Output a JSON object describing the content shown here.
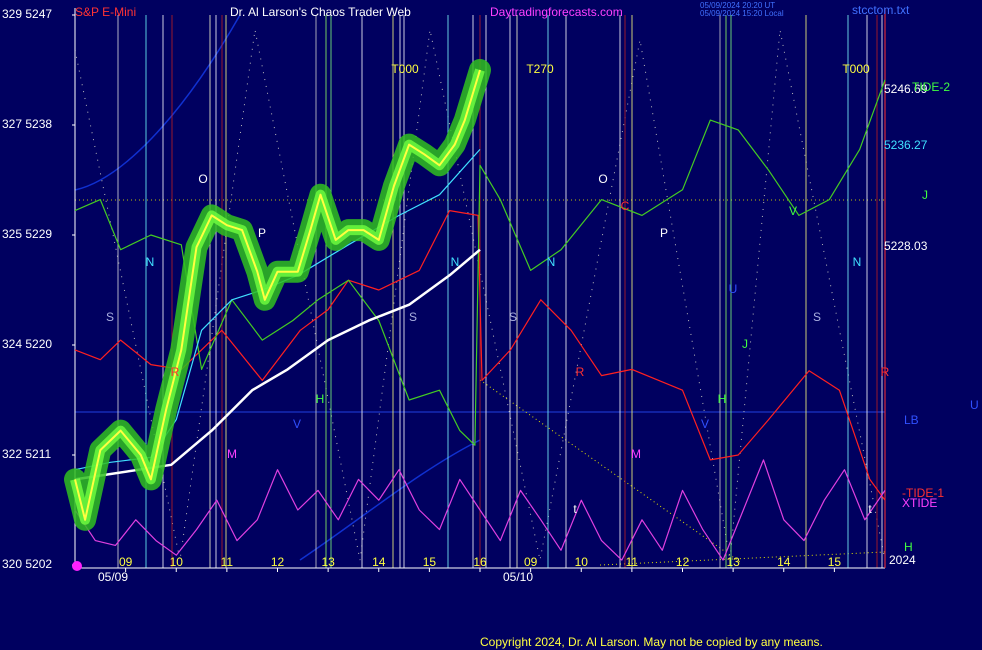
{
  "chart_data": {
    "type": "line",
    "header": [
      "S&P E-Mini",
      "Dr. Al Larson's Chaos Trader Web",
      "Daytradingforecasts.com",
      "05/09/2024 20:20 UT",
      "05/09/2024 15:20 Local",
      "stcctom.txt"
    ],
    "ylim": [
      5202,
      5247
    ],
    "yticks": [
      {
        "value": 5202,
        "label": "320 5202"
      },
      {
        "value": 5211,
        "label": "322 5211"
      },
      {
        "value": 5220,
        "label": "324 5220"
      },
      {
        "value": 5229,
        "label": "325 5229"
      },
      {
        "value": 5238,
        "label": "327 5238"
      },
      {
        "value": 5247,
        "label": "329 5247"
      }
    ],
    "xlim": [
      0,
      16
    ],
    "xticks": [
      {
        "value": 1,
        "label": "09"
      },
      {
        "value": 2,
        "label": "10"
      },
      {
        "value": 3,
        "label": "11"
      },
      {
        "value": 4,
        "label": "12"
      },
      {
        "value": 5,
        "label": "13"
      },
      {
        "value": 6,
        "label": "14"
      },
      {
        "value": 7,
        "label": "15"
      },
      {
        "value": 8,
        "label": "16"
      },
      {
        "value": 9,
        "label": "09"
      },
      {
        "value": 10,
        "label": "10"
      },
      {
        "value": 11,
        "label": "11"
      },
      {
        "value": 12,
        "label": "12"
      },
      {
        "value": 13,
        "label": "13"
      },
      {
        "value": 14,
        "label": "14"
      },
      {
        "value": 15,
        "label": "15"
      }
    ],
    "dates": [
      "05/09",
      "05/10"
    ],
    "series": [
      {
        "color": "#ff2020",
        "x": [
          0,
          0.5,
          0.9,
          1.5,
          2.1,
          2.9,
          3.7,
          4.45,
          5.0,
          5.4,
          6.0,
          6.8,
          7.4,
          7.96,
          8.04,
          8.6,
          9.2,
          9.8,
          10.4,
          11.0,
          12.0,
          12.55,
          13.1,
          13.7,
          14.5,
          15.1,
          15.7,
          16.0
        ],
        "values": [
          5219.6,
          5218.8,
          5220.4,
          5218.4,
          5218.0,
          5221.2,
          5217.1,
          5221.2,
          5222.9,
          5225.3,
          5224.5,
          5226.1,
          5231.0,
          5230.6,
          5217.1,
          5219.6,
          5223.7,
          5221.2,
          5217.5,
          5218.0,
          5216.3,
          5210.6,
          5211.0,
          5213.9,
          5217.9,
          5216.3,
          5209.0,
          5207.3
        ]
      },
      {
        "color": "#44cc22",
        "x": [
          0,
          0.5,
          0.9,
          1.5,
          2.1,
          2.5,
          3.1,
          3.7,
          4.3,
          4.8,
          5.4,
          6.0,
          6.6,
          7.2,
          7.6,
          7.9,
          8.0,
          8.4,
          9.0,
          9.6,
          10.4,
          11.2,
          12.0,
          12.55,
          13.1,
          13.7,
          14.3,
          14.9,
          15.5,
          16.0
        ],
        "values": [
          5231.0,
          5231.9,
          5227.8,
          5229.0,
          5228.2,
          5218.0,
          5223.7,
          5220.4,
          5222.0,
          5223.7,
          5225.3,
          5222.0,
          5215.5,
          5216.3,
          5213.0,
          5211.8,
          5234.7,
          5231.9,
          5226.1,
          5227.8,
          5231.9,
          5230.6,
          5232.7,
          5238.4,
          5237.6,
          5234.3,
          5230.6,
          5231.9,
          5236.0,
          5241.7
        ]
      },
      {
        "color": "#e040e0",
        "x": [
          0,
          0.4,
          0.8,
          1.2,
          1.6,
          2,
          2.4,
          2.8,
          3.2,
          3.6,
          4,
          4.4,
          4.8,
          5.2,
          5.6,
          6,
          6.4,
          6.8,
          7.2,
          7.6,
          8,
          8.4,
          8.8,
          9.2,
          9.6,
          10,
          10.4,
          10.8,
          11.2,
          11.6,
          12,
          12.4,
          12.8,
          13.2,
          13.6,
          14,
          14.4,
          14.8,
          15.2,
          15.6,
          16
        ],
        "values": [
          5206.5,
          5204.0,
          5203.6,
          5205.7,
          5204.0,
          5202.8,
          5204.9,
          5207.3,
          5204.0,
          5205.7,
          5209.8,
          5206.5,
          5208.1,
          5205.7,
          5209.0,
          5207.3,
          5209.8,
          5206.5,
          5204.9,
          5209.0,
          5206.5,
          5204.0,
          5208.1,
          5205.7,
          5203.2,
          5207.3,
          5204.0,
          5202.4,
          5205.7,
          5203.2,
          5208.1,
          5204.9,
          5202.4,
          5206.5,
          5210.6,
          5205.7,
          5204.0,
          5207.3,
          5209.8,
          5205.7,
          5208.1
        ]
      },
      {
        "color": "#ffffff",
        "x": [
          0,
          1.9,
          2.7,
          3.5,
          4.2,
          5.0,
          5.8,
          6.6,
          7.4,
          8.0
        ],
        "values": [
          5209.0,
          5210.2,
          5213.0,
          5216.3,
          5218.0,
          5220.4,
          5222.0,
          5223.3,
          5225.7,
          5227.8
        ]
      },
      {
        "color": "#40e0ff",
        "x": [
          0,
          0.7,
          1.5,
          2.0,
          2.5,
          3.1,
          3.7,
          4.4,
          5.4,
          6.4,
          7.2,
          8.0
        ],
        "values": [
          5209.8,
          5210.4,
          5210.8,
          5213.9,
          5221.2,
          5223.7,
          5224.5,
          5225.7,
          5228.2,
          5230.6,
          5232.3,
          5236.0
        ]
      },
      {
        "color": "#ffff40",
        "x": [
          0,
          0.2,
          0.5,
          0.9,
          1.3,
          1.5,
          1.8,
          2.1,
          2.4,
          2.7,
          3.0,
          3.3,
          3.6,
          3.75,
          4.0,
          4.4,
          4.65,
          4.85,
          5.15,
          5.4,
          5.7,
          6.0,
          6.3,
          6.6,
          6.9,
          7.2,
          7.5,
          7.7,
          8.0
        ],
        "values": [
          5209.0,
          5205.7,
          5211.4,
          5213.0,
          5211.0,
          5209.0,
          5214.7,
          5219.6,
          5228.0,
          5230.6,
          5229.8,
          5229.4,
          5226.0,
          5223.7,
          5226.0,
          5226.0,
          5229.4,
          5232.3,
          5228.6,
          5229.4,
          5229.4,
          5228.6,
          5233.0,
          5236.4,
          5235.6,
          5234.7,
          5236.4,
          5238.4,
          5242.5
        ]
      }
    ],
    "annotations": [
      "O",
      "N",
      "S",
      "P",
      "R",
      "M",
      "H",
      "V",
      "S",
      "N",
      "S",
      "N",
      "O",
      "C",
      "P",
      "R",
      "M",
      "U",
      "J",
      "H",
      "V",
      "V",
      "S",
      "N",
      "R",
      "t",
      "t",
      "T000",
      "T270",
      "T000"
    ],
    "right_labels": [
      5246.69,
      "TIDE-2",
      5236.27,
      "J",
      5228.03,
      "LB",
      "U",
      "-TIDE-1",
      "XTIDE",
      "H",
      "2024"
    ],
    "footer": "Copyright 2024, Dr. Al Larson. May not be copied by any means."
  }
}
